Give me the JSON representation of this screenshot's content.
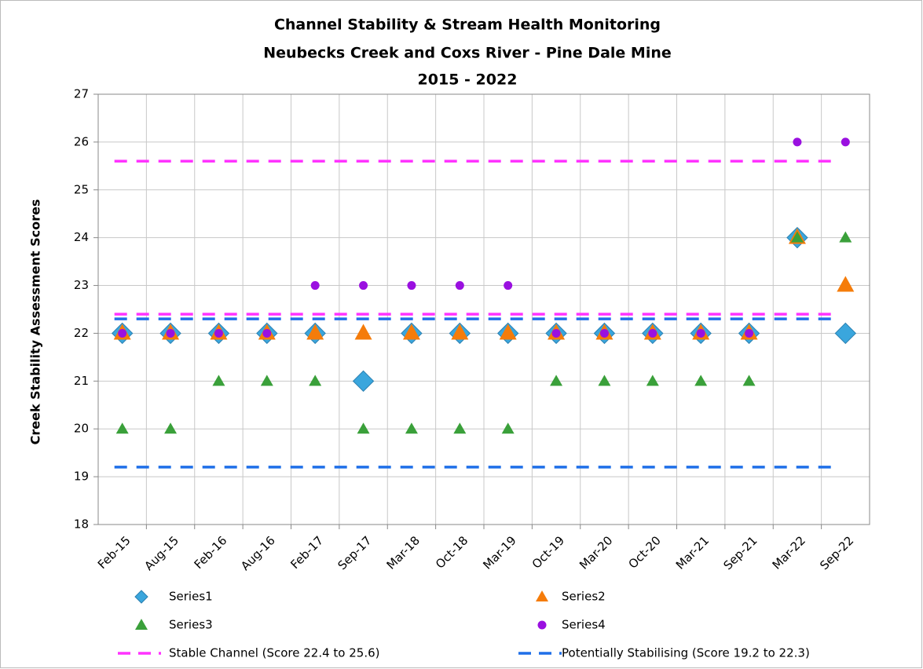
{
  "chart_data": {
    "type": "scatter",
    "title": [
      "Channel Stability & Stream Health Monitoring",
      "Neubecks Creek and Coxs River - Pine Dale Mine",
      "2015 - 2022"
    ],
    "y_label": "Creek Stability Assessment Scores",
    "categories": [
      "Feb-15",
      "Aug-15",
      "Feb-16",
      "Aug-16",
      "Feb-17",
      "Sep-17",
      "Mar-18",
      "Oct-18",
      "Mar-19",
      "Oct-19",
      "Mar-20",
      "Oct-20",
      "Mar-21",
      "Sep-21",
      "Mar-22",
      "Sep-22"
    ],
    "series": [
      {
        "name": "Series1",
        "color": "#3aa6dd",
        "marker": "diamond",
        "values": [
          22,
          22,
          22,
          22,
          22,
          21,
          22,
          22,
          22,
          22,
          22,
          22,
          22,
          22,
          24,
          22
        ]
      },
      {
        "name": "Series2",
        "color": "#f57c0a",
        "marker": "triangle-large",
        "values": [
          22,
          22,
          22,
          22,
          22,
          22,
          22,
          22,
          22,
          22,
          22,
          22,
          22,
          22,
          24,
          23
        ]
      },
      {
        "name": "Series3",
        "color": "#3aa03a",
        "marker": "triangle",
        "values": [
          20,
          20,
          21,
          21,
          21,
          20,
          20,
          20,
          20,
          21,
          21,
          21,
          21,
          21,
          24,
          24
        ]
      },
      {
        "name": "Series4",
        "color": "#9a10e0",
        "marker": "circle",
        "values": [
          22,
          22,
          22,
          22,
          23,
          23,
          23,
          23,
          23,
          22,
          22,
          22,
          22,
          22,
          26,
          26
        ]
      }
    ],
    "bands": [
      {
        "name": "Stable Channel (Score 22.4 to 25.6)",
        "color": "#ff33ff",
        "values": [
          22.4,
          25.6
        ]
      },
      {
        "name": "Potentially Stabilising (Score 19.2 to 22.3)",
        "color": "#1f6fe8",
        "values": [
          19.2,
          22.3
        ]
      }
    ],
    "ylim": [
      18,
      27
    ],
    "yticks": [
      18,
      19,
      20,
      21,
      22,
      23,
      24,
      25,
      26,
      27
    ],
    "grid": true
  }
}
